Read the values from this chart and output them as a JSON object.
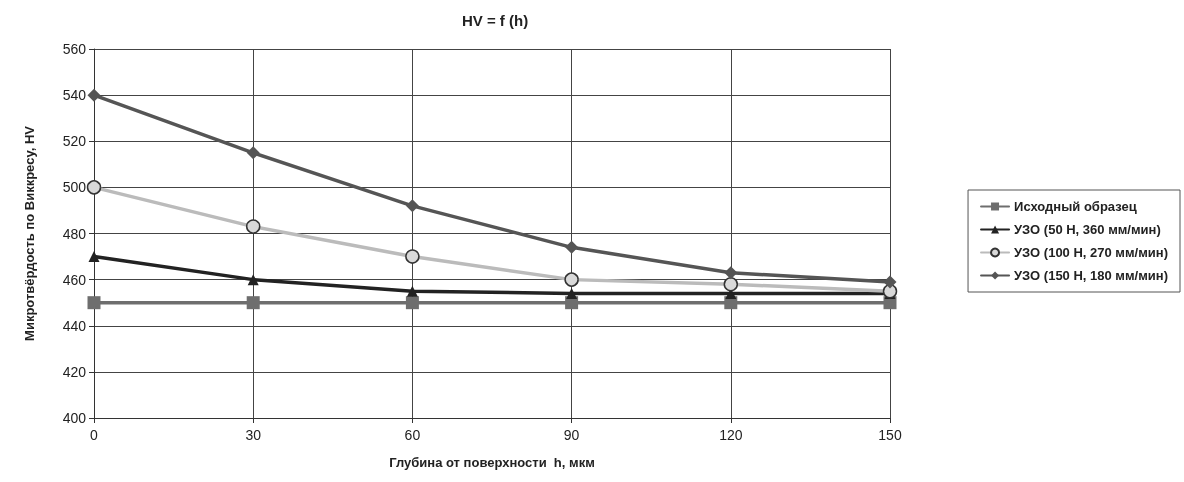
{
  "chart_data": {
    "type": "line",
    "title": "HV = f (h)",
    "xlabel": "Глубина от поверхности  h, мкм",
    "ylabel": "Микротвёрдость по Виккресу, HV",
    "x": [
      0,
      30,
      60,
      90,
      120,
      150
    ],
    "xlim": [
      0,
      150
    ],
    "xticks": [
      0,
      30,
      60,
      90,
      120,
      150
    ],
    "ylim": [
      400,
      560
    ],
    "yticks": [
      400,
      420,
      440,
      460,
      480,
      500,
      520,
      540,
      560
    ],
    "grid": true,
    "legend": "right",
    "line_style": "solid",
    "series": [
      {
        "name": "Исходный образец",
        "color": "#6e6e6e",
        "marker": "square",
        "values": [
          450,
          450,
          450,
          450,
          450,
          450
        ]
      },
      {
        "name": "УЗО (50 Н, 360 мм/мин)",
        "color": "#222222",
        "marker": "triangle",
        "values": [
          470,
          460,
          455,
          454,
          454,
          454
        ]
      },
      {
        "name": "УЗО (100 Н, 270 мм/мин)",
        "color": "#bbbbbb",
        "marker": "circle",
        "values": [
          500,
          483,
          470,
          460,
          458,
          455
        ]
      },
      {
        "name": "УЗО (150 Н, 180 мм/мин)",
        "color": "#555555",
        "marker": "diamond",
        "values": [
          540,
          515,
          492,
          474,
          463,
          459
        ]
      }
    ]
  }
}
